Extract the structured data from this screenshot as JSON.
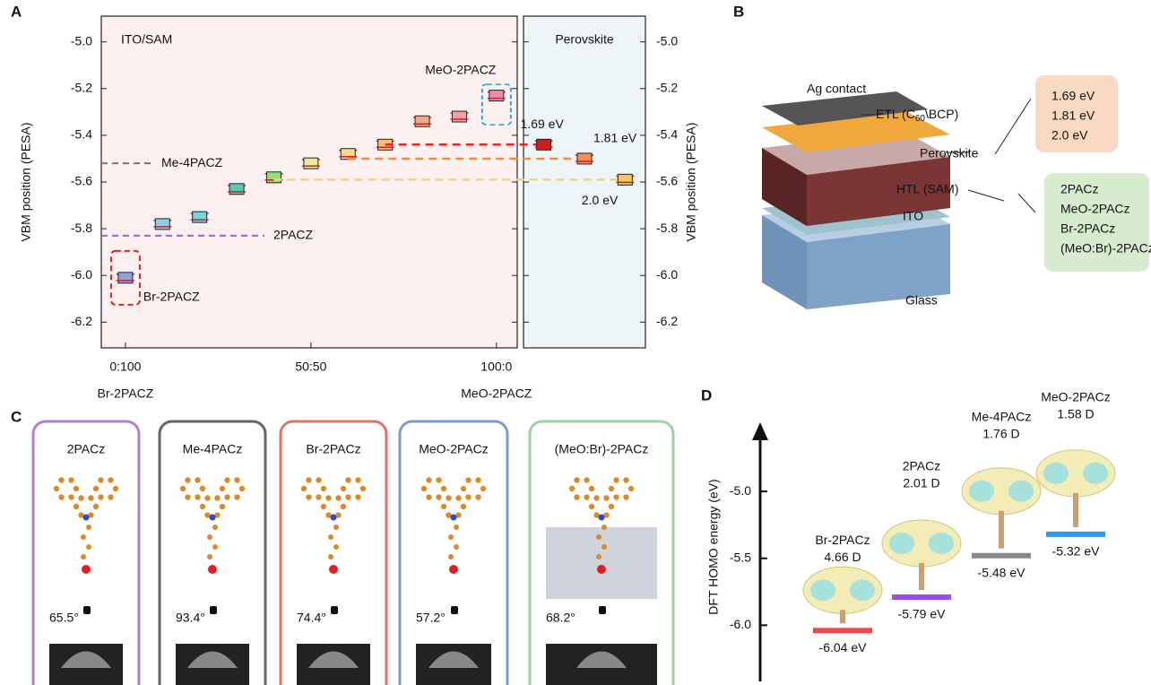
{
  "panel_labels": [
    "A",
    "B",
    "C",
    "D"
  ],
  "chart_data": [
    {
      "type": "scatter",
      "y_label": "VBM position (PESA)",
      "annotations": [
        "ITO/SAM",
        "MeO-2PACZ",
        "Br-2PACZ"
      ],
      "x_end_labels": [
        "Br-2PACZ",
        "MeO-2PACZ"
      ],
      "x": [
        0,
        10,
        20,
        30,
        40,
        50,
        60,
        70,
        80,
        90,
        100
      ],
      "values": [
        -6.01,
        -5.78,
        -5.75,
        -5.63,
        -5.58,
        -5.52,
        -5.48,
        -5.44,
        -5.34,
        -5.32,
        -5.23
      ],
      "colors": [
        "#8ea2e6",
        "#8ccfe8",
        "#6fd9e2",
        "#58c9b2",
        "#8fe07a",
        "#e6ec9c",
        "#f6dc8c",
        "#f5c27c",
        "#f3aa8a",
        "#f0a2a2",
        "#ee8ab2"
      ],
      "xlim": [
        -6.5,
        105.6
      ],
      "xticks": [
        {
          "value": 0,
          "label": "0:100"
        },
        {
          "value": 50,
          "label": "50:50"
        },
        {
          "value": 100,
          "label": "100:0"
        }
      ],
      "ylim": [
        -6.31,
        -4.89
      ],
      "yticks": [
        {
          "value": -5,
          "label": "-5.0"
        },
        -5.2,
        -5.4,
        -5.6,
        -5.8,
        {
          "value": -6,
          "label": "-6.0"
        },
        -6.2
      ],
      "reference_lines": [
        {
          "label": "Me-4PACZ",
          "value": -5.52,
          "color": "#777777"
        },
        {
          "label": "2PACZ",
          "value": -5.83,
          "color": "#9b5cf0"
        }
      ]
    },
    {
      "type": "dot",
      "title": "Perovskite",
      "y_label": "VBM position (PESA)",
      "categories": [
        "1.69 eV",
        "1.81 eV",
        "2.0 eV"
      ],
      "values": [
        -5.44,
        -5.5,
        -5.59
      ],
      "colors": [
        "#c81e1e",
        "#f09050",
        "#f2c85e"
      ],
      "line_colors": [
        "#e02828",
        "#f08a3c",
        "#f5d470"
      ],
      "ylim": [
        -6.31,
        -4.89
      ],
      "yticks": [
        {
          "value": -5,
          "label": "-5.0"
        },
        -5.2,
        -5.4,
        -5.6,
        -5.8,
        {
          "value": -6,
          "label": "-6.0"
        },
        -6.2
      ]
    },
    {
      "type": "level",
      "y_label": "DFT HOMO energy (eV)",
      "categories": [
        "Br-2PACz",
        "2PACz",
        "Me-4PACz",
        "MeO-2PACz"
      ],
      "dipoles": [
        "4.66 D",
        "2.01 D",
        "1.76 D",
        "1.58 D"
      ],
      "values": [
        -6.04,
        -5.79,
        -5.48,
        -5.32
      ],
      "value_labels": [
        "-6.04 eV",
        "-5.79 eV",
        "-5.48 eV",
        "-5.32 eV"
      ],
      "colors": [
        "#f04848",
        "#9b4cf0",
        "#888888",
        "#2a9cf0"
      ],
      "ylim": [
        -6.42,
        -4.51
      ],
      "yticks": [
        {
          "value": -5,
          "label": "-5.0"
        },
        -5.5,
        {
          "value": -6,
          "label": "-6.0"
        }
      ]
    }
  ],
  "device": {
    "ag": "Ag contact",
    "etl": [
      "ETL (C",
      "60",
      "\\BCP)"
    ],
    "perovskite": "Perovskite",
    "htl": "HTL (SAM)",
    "ito": "ITO",
    "glass": "Glass",
    "bandgaps": [
      "1.69 eV",
      "1.81 eV",
      "2.0  eV"
    ],
    "sams": [
      "2PACz",
      "MeO-2PACz",
      "Br-2PACz",
      "(MeO:Br)-2PACz"
    ]
  },
  "contact_angle": {
    "cards": [
      {
        "label": "2PACz",
        "angle": "65.5°"
      },
      {
        "label": "Me-4PACz",
        "angle": "93.4°"
      },
      {
        "label": "Br-2PACz",
        "angle": "74.4°"
      },
      {
        "label": "MeO-2PACz",
        "angle": "57.2°"
      },
      {
        "label": "(MeO:Br)-2PACz",
        "angle": "68.2°"
      }
    ]
  }
}
